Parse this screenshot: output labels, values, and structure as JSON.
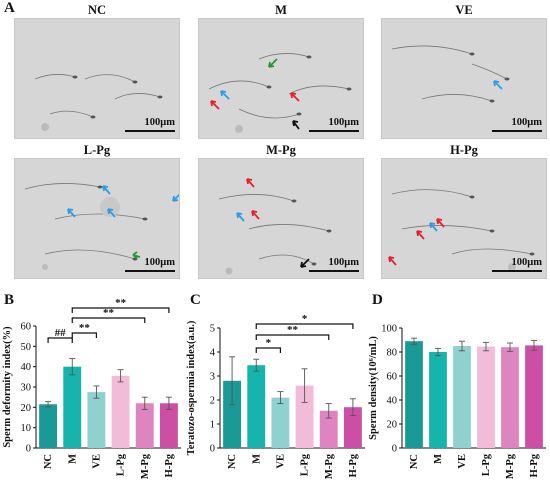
{
  "panel_letters": {
    "a": "A",
    "b": "B",
    "c": "C",
    "d": "D"
  },
  "micrographs": [
    {
      "label": "NC",
      "scale": "100μm"
    },
    {
      "label": "M",
      "scale": "100μm"
    },
    {
      "label": "VE",
      "scale": "100μm"
    },
    {
      "label": "L-Pg",
      "scale": "100μm"
    },
    {
      "label": "M-Pg",
      "scale": "100μm"
    },
    {
      "label": "H-Pg",
      "scale": "100μm"
    }
  ],
  "arrow_colors": {
    "red": "#e8202a",
    "blue": "#2a9ee8",
    "green": "#1e9a3a",
    "black": "#111111"
  },
  "bar_colors": [
    "#1a9a96",
    "#17b3ad",
    "#8ed1ce",
    "#f2bcd8",
    "#de84c0",
    "#cc4fa5"
  ],
  "chart_data": [
    {
      "type": "bar",
      "categories": [
        "NC",
        "M",
        "VE",
        "L-Pg",
        "M-Pg",
        "H-Pg"
      ],
      "values": [
        21.5,
        40,
        27.5,
        35.5,
        22,
        22
      ],
      "errors": [
        1.3,
        4,
        3,
        3,
        3,
        3
      ],
      "ylabel": "Sperm deformity index(%)",
      "ylim": [
        0,
        60
      ],
      "yticks": [
        0,
        10,
        20,
        30,
        40,
        50,
        60
      ],
      "annotations": [
        {
          "from": 0,
          "to": 1,
          "text": "##"
        },
        {
          "from": 1,
          "to": 2,
          "text": "**"
        },
        {
          "from": 1,
          "to": 4,
          "text": "**"
        },
        {
          "from": 1,
          "to": 5,
          "text": "**"
        }
      ]
    },
    {
      "type": "bar",
      "categories": [
        "NC",
        "M",
        "VE",
        "L-Pg",
        "M-Pg",
        "H-Pg"
      ],
      "values": [
        2.8,
        3.45,
        2.1,
        2.6,
        1.55,
        1.7
      ],
      "errors": [
        1.0,
        0.25,
        0.25,
        0.7,
        0.3,
        0.35
      ],
      "ylabel": "Teratozo-ospermia index(a.u.)",
      "ylim": [
        0,
        5
      ],
      "yticks": [
        0,
        1,
        2,
        3,
        4,
        5
      ],
      "annotations": [
        {
          "from": 1,
          "to": 2,
          "text": "*"
        },
        {
          "from": 1,
          "to": 4,
          "text": "**"
        },
        {
          "from": 1,
          "to": 5,
          "text": "*"
        }
      ]
    },
    {
      "type": "bar",
      "categories": [
        "NC",
        "M",
        "VE",
        "L-Pg",
        "M-Pg",
        "H-Pg"
      ],
      "values": [
        89,
        80,
        85,
        84.5,
        84,
        85.5
      ],
      "errors": [
        2.5,
        3,
        4,
        3.5,
        3.5,
        4
      ],
      "ylabel": "Sperm density(10⁶/mL)",
      "ylim": [
        0,
        100
      ],
      "yticks": [
        0,
        20,
        40,
        60,
        80,
        100
      ],
      "annotations": []
    }
  ]
}
